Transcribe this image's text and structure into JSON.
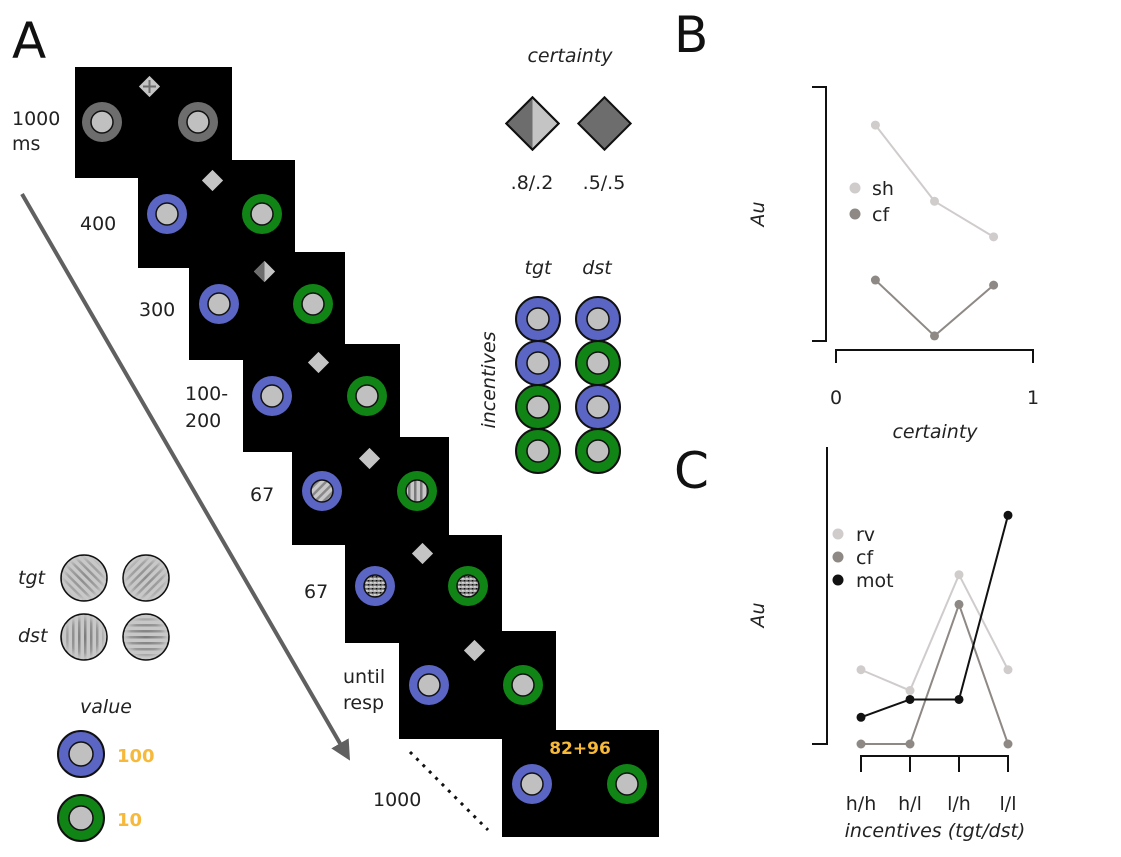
{
  "panels": {
    "a": "A",
    "b": "B",
    "c": "C"
  },
  "colors": {
    "blue": "#5b65c4",
    "green": "#118416",
    "grey_ring": "#6d6d6d",
    "patch": "#c0c0c0",
    "screen": "#000000",
    "diamond": "#c4c4c4",
    "reward": "#f6b93b",
    "arrow": "#606060",
    "series_light": "#d0cccc",
    "series_mid": "#8e8985",
    "series_dark": "#111111"
  },
  "panel_a": {
    "durations": [
      "1000",
      "ms",
      "400",
      "300",
      "100-",
      "200",
      "67",
      "67",
      "until",
      "resp",
      "1000"
    ],
    "reward_display": "82+96",
    "certainty": {
      "title": "certainty",
      "values": [
        ".8/.2",
        ".5/.5"
      ]
    },
    "incentives": {
      "title": "incentives",
      "col_labels": [
        "tgt",
        "dst"
      ],
      "rows": [
        [
          "blue",
          "blue"
        ],
        [
          "blue",
          "green"
        ],
        [
          "green",
          "blue"
        ],
        [
          "green",
          "green"
        ]
      ]
    },
    "legend": {
      "tgt": "tgt",
      "dst": "dst",
      "value_title": "value",
      "blue_value": "100",
      "green_value": "10"
    }
  },
  "chart_data": [
    {
      "type": "line",
      "panel": "B",
      "xlabel": "certainty",
      "ylabel": "Au",
      "xlim": [
        0,
        1
      ],
      "xticks": [
        "0",
        "1"
      ],
      "x": [
        0.2,
        0.5,
        0.8
      ],
      "series": [
        {
          "name": "sh",
          "color": "#d0cccc",
          "values": [
            0.85,
            0.55,
            0.41
          ]
        },
        {
          "name": "cf",
          "color": "#8e8985",
          "values": [
            0.24,
            0.02,
            0.22
          ]
        }
      ],
      "ylim": [
        0,
        1
      ],
      "legend": "upper-left"
    },
    {
      "type": "line",
      "panel": "C",
      "xlabel": "incentives (tgt/dst)",
      "ylabel": "Au",
      "categories": [
        "h/h",
        "h/l",
        "l/h",
        "l/l"
      ],
      "series": [
        {
          "name": "rv",
          "color": "#d0cccc",
          "values": [
            0.25,
            0.18,
            0.57,
            0.25
          ]
        },
        {
          "name": "cf",
          "color": "#8e8985",
          "values": [
            0.0,
            0.0,
            0.47,
            0.0
          ]
        },
        {
          "name": "mot",
          "color": "#111111",
          "values": [
            0.09,
            0.15,
            0.15,
            0.77
          ]
        }
      ],
      "ylim": [
        0,
        1
      ],
      "legend": "upper-left"
    }
  ]
}
